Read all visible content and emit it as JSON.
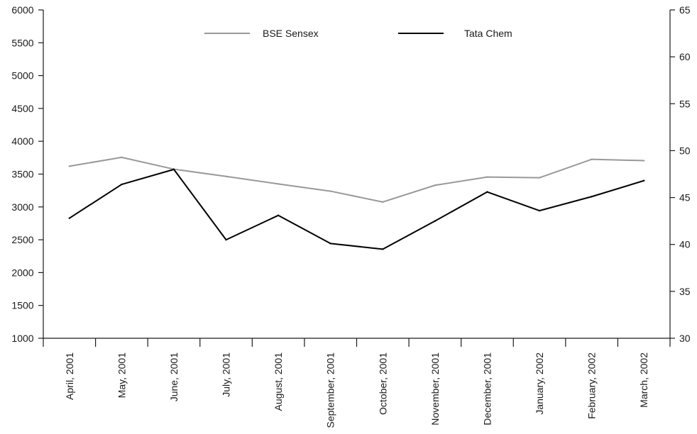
{
  "chart_data": {
    "type": "line",
    "categories": [
      "April, 2001",
      "May, 2001",
      "June, 2001",
      "July, 2001",
      "August, 2001",
      "September, 2001",
      "October, 2001",
      "November, 2001",
      "December, 2001",
      "January, 2002",
      "February, 2002",
      "March, 2002"
    ],
    "series": [
      {
        "name": "BSE Sensex",
        "axis": "left",
        "color": "#999999",
        "values": [
          3620,
          3755,
          3575,
          3465,
          3350,
          3240,
          3075,
          3330,
          3455,
          3445,
          3725,
          3705
        ]
      },
      {
        "name": "Tata Chem",
        "axis": "right",
        "color": "#000000",
        "values": [
          42.8,
          46.4,
          48.0,
          40.5,
          43.1,
          40.1,
          39.5,
          42.5,
          45.6,
          43.6,
          45.1,
          46.8
        ]
      }
    ],
    "y_left": {
      "min": 1000,
      "max": 6000,
      "ticks": [
        1000,
        1500,
        2000,
        2500,
        3000,
        3500,
        4000,
        4500,
        5000,
        5500,
        6000
      ]
    },
    "y_right": {
      "min": 30,
      "max": 65,
      "ticks": [
        30,
        35,
        40,
        45,
        50,
        55,
        60,
        65
      ]
    },
    "legend": "top-center",
    "grid": false
  }
}
